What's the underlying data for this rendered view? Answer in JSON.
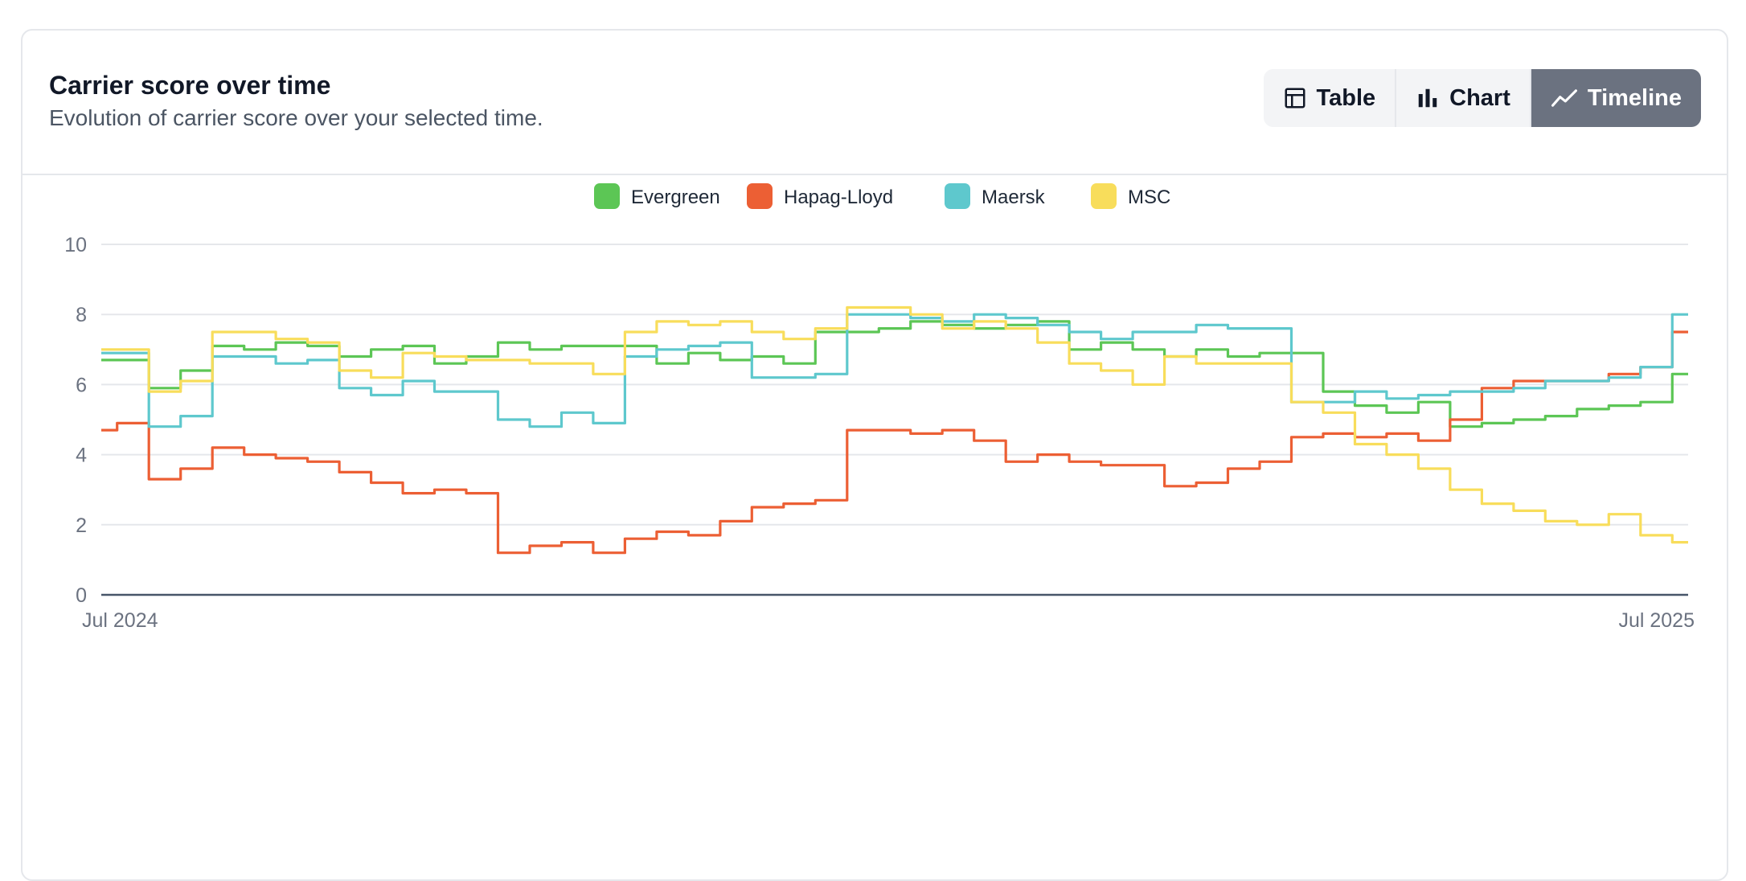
{
  "header": {
    "title": "Carrier score over time",
    "subtitle": "Evolution of carrier score over your selected time."
  },
  "view_toggle": {
    "options": [
      {
        "label": "Table",
        "icon": "table-icon",
        "active": false
      },
      {
        "label": "Chart",
        "icon": "bar-chart-icon",
        "active": false
      },
      {
        "label": "Timeline",
        "icon": "trend-line-icon",
        "active": true
      }
    ],
    "active_color": "#6b7280"
  },
  "chart_data": {
    "type": "line",
    "title": "",
    "xlabel": "",
    "ylabel": "",
    "x_range": [
      "Jul 2024",
      "Jul 2025"
    ],
    "x_tick_labels": [
      "Jul 2024",
      "Jul 2025"
    ],
    "ylim": [
      0,
      10
    ],
    "y_ticks": [
      0,
      2,
      4,
      6,
      8,
      10
    ],
    "grid": true,
    "legend_position": "top-center",
    "x": [
      0,
      0.02,
      0.04,
      0.06,
      0.08,
      0.1,
      0.12,
      0.14,
      0.16,
      0.18,
      0.2,
      0.22,
      0.24,
      0.26,
      0.28,
      0.3,
      0.32,
      0.34,
      0.36,
      0.38,
      0.4,
      0.42,
      0.44,
      0.46,
      0.48,
      0.5,
      0.52,
      0.54,
      0.56,
      0.58,
      0.6,
      0.62,
      0.64,
      0.66,
      0.68,
      0.7,
      0.72,
      0.74,
      0.76,
      0.78,
      0.8,
      0.82,
      0.84,
      0.86,
      0.88,
      0.9,
      0.92,
      0.94,
      0.96,
      0.98,
      1.0
    ],
    "series": [
      {
        "name": "Evergreen",
        "color": "#5cc655",
        "values": [
          6.7,
          6.7,
          5.9,
          6.4,
          7.1,
          7.0,
          7.2,
          7.1,
          6.8,
          7.0,
          7.1,
          6.6,
          6.8,
          7.2,
          7.0,
          7.1,
          7.1,
          7.1,
          6.6,
          6.9,
          6.7,
          6.8,
          6.6,
          7.5,
          7.5,
          7.6,
          7.8,
          7.7,
          7.6,
          7.7,
          7.8,
          7.0,
          7.2,
          7.0,
          6.8,
          7.0,
          6.8,
          6.9,
          6.9,
          5.8,
          5.4,
          5.2,
          5.5,
          4.8,
          4.9,
          5.0,
          5.1,
          5.3,
          5.4,
          5.5,
          6.3
        ]
      },
      {
        "name": "Hapag-Lloyd",
        "color": "#ec5f34",
        "values": [
          4.7,
          4.9,
          3.3,
          3.6,
          4.2,
          4.0,
          3.9,
          3.8,
          3.5,
          3.2,
          2.9,
          3.0,
          2.9,
          1.2,
          1.4,
          1.5,
          1.2,
          1.6,
          1.8,
          1.7,
          2.1,
          2.5,
          2.6,
          2.7,
          4.7,
          4.7,
          4.6,
          4.7,
          4.4,
          3.8,
          4.0,
          3.8,
          3.7,
          3.7,
          3.1,
          3.2,
          3.6,
          3.8,
          4.5,
          4.6,
          4.5,
          4.6,
          4.4,
          5.0,
          5.9,
          6.1,
          6.1,
          6.1,
          6.3,
          6.5,
          7.5
        ]
      },
      {
        "name": "Maersk",
        "color": "#5ec8cd",
        "values": [
          6.9,
          6.9,
          4.8,
          5.1,
          6.8,
          6.8,
          6.6,
          6.7,
          5.9,
          5.7,
          6.1,
          5.8,
          5.8,
          5.0,
          4.8,
          5.2,
          4.9,
          6.8,
          7.0,
          7.1,
          7.2,
          6.2,
          6.2,
          6.3,
          8.0,
          8.0,
          7.9,
          7.8,
          8.0,
          7.9,
          7.7,
          7.5,
          7.3,
          7.5,
          7.5,
          7.7,
          7.6,
          7.6,
          5.5,
          5.5,
          5.8,
          5.6,
          5.7,
          5.8,
          5.8,
          5.9,
          6.1,
          6.1,
          6.2,
          6.5,
          8.0
        ]
      },
      {
        "name": "MSC",
        "color": "#f8dd5b",
        "values": [
          7.0,
          7.0,
          5.8,
          6.1,
          7.5,
          7.5,
          7.3,
          7.2,
          6.4,
          6.2,
          6.9,
          6.8,
          6.7,
          6.7,
          6.6,
          6.6,
          6.3,
          7.5,
          7.8,
          7.7,
          7.8,
          7.5,
          7.3,
          7.6,
          8.2,
          8.2,
          8.0,
          7.6,
          7.8,
          7.6,
          7.2,
          6.6,
          6.4,
          6.0,
          6.8,
          6.6,
          6.6,
          6.6,
          5.5,
          5.2,
          4.3,
          4.0,
          3.6,
          3.0,
          2.6,
          2.4,
          2.1,
          2.0,
          2.3,
          1.7,
          1.5
        ]
      }
    ]
  }
}
